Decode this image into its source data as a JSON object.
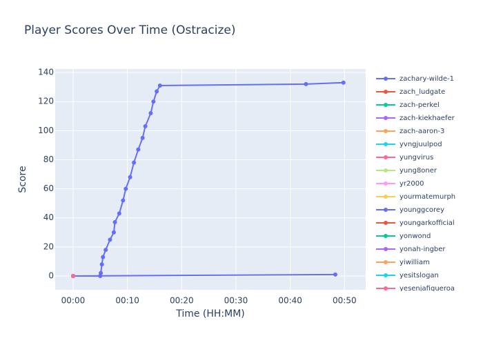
{
  "chart_data": {
    "type": "line",
    "title": "Player Scores Over Time (Ostracize)",
    "x_label": "Time (HH:MM)",
    "y_label": "Score",
    "xlim": [
      -3.3,
      53.9
    ],
    "ylim": [
      -9.5,
      142.4
    ],
    "xticks": [
      {
        "value": 0,
        "label": "00:00"
      },
      {
        "value": 10,
        "label": "00:10"
      },
      {
        "value": 20,
        "label": "00:20"
      },
      {
        "value": 30,
        "label": "00:30"
      },
      {
        "value": 40,
        "label": "00:40"
      },
      {
        "value": 50,
        "label": "00:50"
      }
    ],
    "yticks": [
      0,
      20,
      40,
      60,
      80,
      100,
      120,
      140
    ],
    "grid": true,
    "series": [
      {
        "name": "zachary-wilde-1",
        "color": "#636efa",
        "x": [
          0,
          5,
          5.1,
          5.3,
          5.5,
          6,
          6.8,
          7.5,
          7.7,
          8.5,
          9.2,
          9.7,
          10.5,
          11.2,
          12,
          12.8,
          13.3,
          14.3,
          14.8,
          15.4,
          16,
          42.9,
          49.8
        ],
        "values": [
          0,
          0,
          2,
          8,
          13,
          18,
          25,
          30,
          37,
          43,
          52,
          60,
          68,
          78,
          87,
          95,
          103,
          112,
          120,
          127,
          131,
          132,
          133
        ]
      },
      {
        "name": "zach_ludgate",
        "color": "#EF553B",
        "x": [
          0
        ],
        "values": [
          0
        ]
      },
      {
        "name": "zach-perkel",
        "color": "#00cc96",
        "x": [
          0
        ],
        "values": [
          0
        ]
      },
      {
        "name": "zach-kiekhaefer",
        "color": "#ab63fa",
        "x": [
          0
        ],
        "values": [
          0
        ]
      },
      {
        "name": "zach-aaron-3",
        "color": "#FFA15A",
        "x": [
          0
        ],
        "values": [
          0
        ]
      },
      {
        "name": "yvngjuulpod",
        "color": "#19d3f3",
        "x": [
          0
        ],
        "values": [
          0
        ]
      },
      {
        "name": "yungvirus",
        "color": "#FF6692",
        "x": [
          0
        ],
        "values": [
          0
        ]
      },
      {
        "name": "yung8oner",
        "color": "#B6E880",
        "x": [
          0
        ],
        "values": [
          0
        ]
      },
      {
        "name": "yr2000",
        "color": "#FF97FF",
        "x": [
          0
        ],
        "values": [
          0
        ]
      },
      {
        "name": "yourmatemurph",
        "color": "#FECB52",
        "x": [
          0
        ],
        "values": [
          0
        ]
      },
      {
        "name": "younggcorey",
        "color": "#636efa",
        "x": [
          0,
          48.3
        ],
        "values": [
          0,
          1
        ]
      },
      {
        "name": "youngarkofficial",
        "color": "#EF553B",
        "x": [
          0
        ],
        "values": [
          0
        ]
      },
      {
        "name": "yonwond",
        "color": "#00cc96",
        "x": [
          0
        ],
        "values": [
          0
        ]
      },
      {
        "name": "yonah-ingber",
        "color": "#ab63fa",
        "x": [
          0
        ],
        "values": [
          0
        ]
      },
      {
        "name": "yiwilliam",
        "color": "#FFA15A",
        "x": [
          0
        ],
        "values": [
          0
        ]
      },
      {
        "name": "yesitslogan",
        "color": "#19d3f3",
        "x": [
          0
        ],
        "values": [
          0
        ]
      },
      {
        "name": "yesenjafigueroa",
        "color": "#FF6692",
        "x": [
          0
        ],
        "values": [
          0
        ]
      }
    ]
  }
}
